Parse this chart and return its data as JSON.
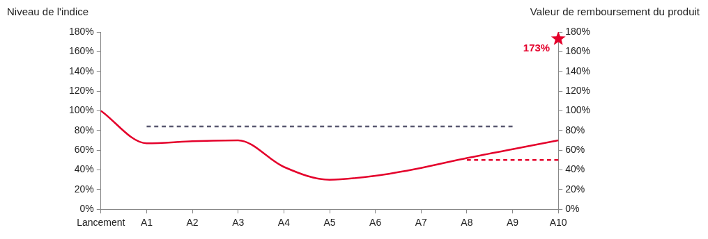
{
  "chart_data": {
    "type": "line",
    "ylabel": "Niveau de l'indice",
    "y2label": "Valeur de remboursement du produit",
    "categories": [
      "Lancement",
      "A1",
      "A2",
      "A3",
      "A4",
      "A5",
      "A6",
      "A7",
      "A8",
      "A9",
      "A10"
    ],
    "series": [
      {
        "color": "#e4002b",
        "values": [
          100,
          67,
          69,
          70,
          43,
          30,
          34,
          42,
          52,
          61,
          70
        ],
        "marker": "none",
        "line_style": "solid"
      },
      {
        "color": "#595870",
        "values": [
          null,
          84,
          84,
          84,
          84,
          84,
          84,
          84,
          84,
          84,
          null
        ],
        "marker": "none",
        "line_style": "dashed"
      },
      {
        "color": "#e4002b",
        "values": [
          null,
          null,
          null,
          null,
          null,
          null,
          null,
          null,
          50,
          50,
          50
        ],
        "marker": "none",
        "line_style": "dashed"
      },
      {
        "type": "scatter",
        "axis": "y2",
        "color": "#e4002b",
        "values": [
          null,
          null,
          null,
          null,
          null,
          null,
          null,
          null,
          null,
          null,
          173
        ],
        "marker": "star",
        "value_labels": [
          null,
          null,
          null,
          null,
          null,
          null,
          null,
          null,
          null,
          null,
          "173%"
        ]
      }
    ],
    "ylim": [
      0,
      180
    ],
    "yticks": [
      {
        "value": 0,
        "label": "0%"
      },
      {
        "value": 20,
        "label": "20%"
      },
      {
        "value": 40,
        "label": "40%"
      },
      {
        "value": 60,
        "label": "60%"
      },
      {
        "value": 80,
        "label": "80%"
      },
      {
        "value": 100,
        "label": "100%"
      },
      {
        "value": 120,
        "label": "120%"
      },
      {
        "value": 140,
        "label": "140%"
      },
      {
        "value": 160,
        "label": "160%"
      },
      {
        "value": 180,
        "label": "180%"
      }
    ],
    "y2lim": [
      0,
      180
    ],
    "y2ticks": [
      {
        "value": 0,
        "label": "0%"
      },
      {
        "value": 20,
        "label": "20%"
      },
      {
        "value": 40,
        "label": "40%"
      },
      {
        "value": 60,
        "label": "60%"
      },
      {
        "value": 80,
        "label": "80%"
      },
      {
        "value": 100,
        "label": "100%"
      },
      {
        "value": 120,
        "label": "120%"
      },
      {
        "value": 140,
        "label": "140%"
      },
      {
        "value": 160,
        "label": "160%"
      },
      {
        "value": 180,
        "label": "180%"
      }
    ],
    "grid": false,
    "legend": false
  }
}
